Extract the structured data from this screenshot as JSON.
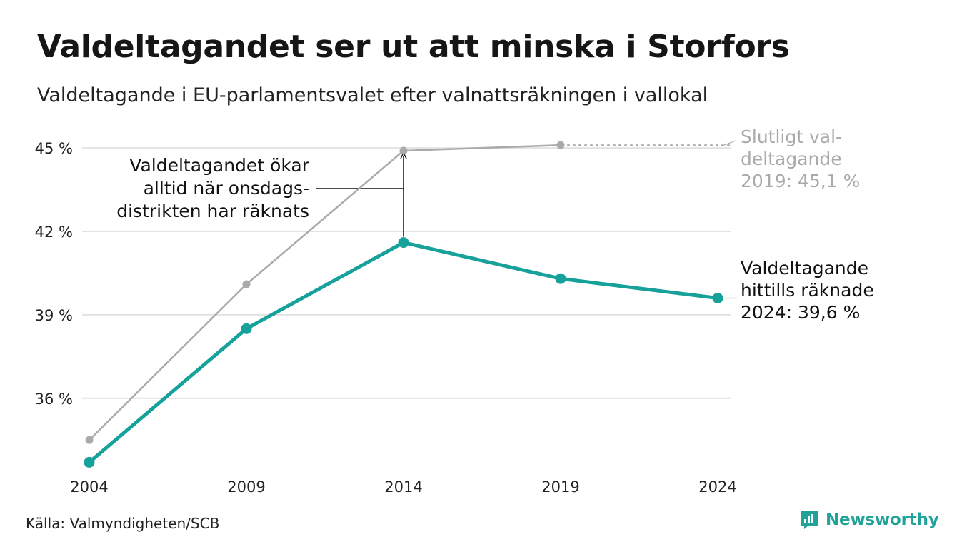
{
  "title": "Valdeltagandet ser ut att minska i Storfors",
  "subtitle": "Valdeltagande i EU-parlamentsvalet efter valnattsräkningen i vallokal",
  "source": "Källa: Valmyndigheten/SCB",
  "brand": "Newsworthy",
  "colors": {
    "final": "#aaaaaa",
    "current": "#16a19a",
    "grid": "#e3e3e3",
    "text": "#222222"
  },
  "chart_data": {
    "type": "line",
    "x": [
      2004,
      2009,
      2014,
      2019,
      2024
    ],
    "x_tick_labels": [
      "2004",
      "2009",
      "2014",
      "2019",
      "2024"
    ],
    "y_tick_values": [
      36,
      39,
      42,
      45
    ],
    "y_tick_labels": [
      "36 %",
      "39 %",
      "42 %",
      "45 %"
    ],
    "ylim": [
      33.3,
      45.9
    ],
    "grid": true,
    "series": [
      {
        "key": "final",
        "values": [
          34.5,
          40.1,
          44.9,
          45.1,
          null
        ]
      },
      {
        "key": "current",
        "values": [
          33.7,
          38.5,
          41.6,
          40.3,
          39.6
        ]
      }
    ],
    "annotations": {
      "final_label": [
        "Slutligt val-",
        "deltagande",
        "2019: 45,1 %"
      ],
      "current_label": [
        "Valdeltagande",
        "hittills räknade",
        "2024: 39,6 %"
      ],
      "increase_note": [
        "Valdeltagandet ökar",
        "alltid när onsdags-",
        "distrikten har räknats"
      ]
    }
  }
}
